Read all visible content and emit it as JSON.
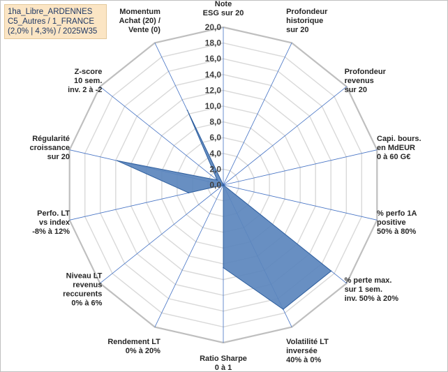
{
  "info_box": {
    "line1": "1ha_Libre_ARDENNES",
    "line2": "C5_Autres / 1_FRANCE",
    "line3": "(2,0% | 4,3%) / 2025W35"
  },
  "colors": {
    "fill": "#5b86bd",
    "stroke": "#2f5f9e",
    "grid": "#d9d9d9",
    "spoke": "#4472c4",
    "info_bg": "#fbe5c4"
  },
  "chart_data": {
    "type": "radar",
    "title": "",
    "rmin": 0,
    "rmax": 20,
    "tick_values": [
      0,
      2,
      4,
      6,
      8,
      10,
      12,
      14,
      16,
      18,
      20
    ],
    "tick_labels": [
      "0,0",
      "2,0",
      "4,0",
      "6,0",
      "8,0",
      "10,0",
      "12,0",
      "14,0",
      "16,0",
      "18,0",
      "20,0"
    ],
    "grid": true,
    "legend": "none",
    "axes": [
      [
        "Note",
        "ESG sur 20"
      ],
      [
        "Profondeur",
        "historique",
        "sur 20"
      ],
      [
        "Profondeur",
        "revenus",
        "sur 20"
      ],
      [
        "Capi. bours.",
        "en MdEUR",
        "0 à 60 G€"
      ],
      [
        "% perfo 1A",
        "positive",
        "50% à 80%"
      ],
      [
        "% perte max.",
        "sur 1 sem.",
        "inv. 50% à 20%"
      ],
      [
        "Volatilité LT",
        "inversée",
        "40% à 0%"
      ],
      [
        "Ratio Sharpe",
        "0 à 1"
      ],
      [
        "Rendement LT",
        "0% à 20%"
      ],
      [
        "Niveau LT",
        "revenus",
        "reccurents",
        "0% à 6%"
      ],
      [
        "Perfo. LT",
        "vs index",
        "-8% à 12%"
      ],
      [
        "Régularité",
        "croissance",
        "sur 20"
      ],
      [
        "Z-score",
        "10 sem.",
        "inv. 2 à -2"
      ],
      [
        "Momentum",
        "Achat (20) /",
        "Vente (0)"
      ]
    ],
    "series": [
      {
        "values": [
          0,
          0,
          0,
          0,
          0,
          17.5,
          17.5,
          10.5,
          0,
          0,
          4.5,
          13.8,
          1.0,
          10.5
        ]
      }
    ]
  }
}
